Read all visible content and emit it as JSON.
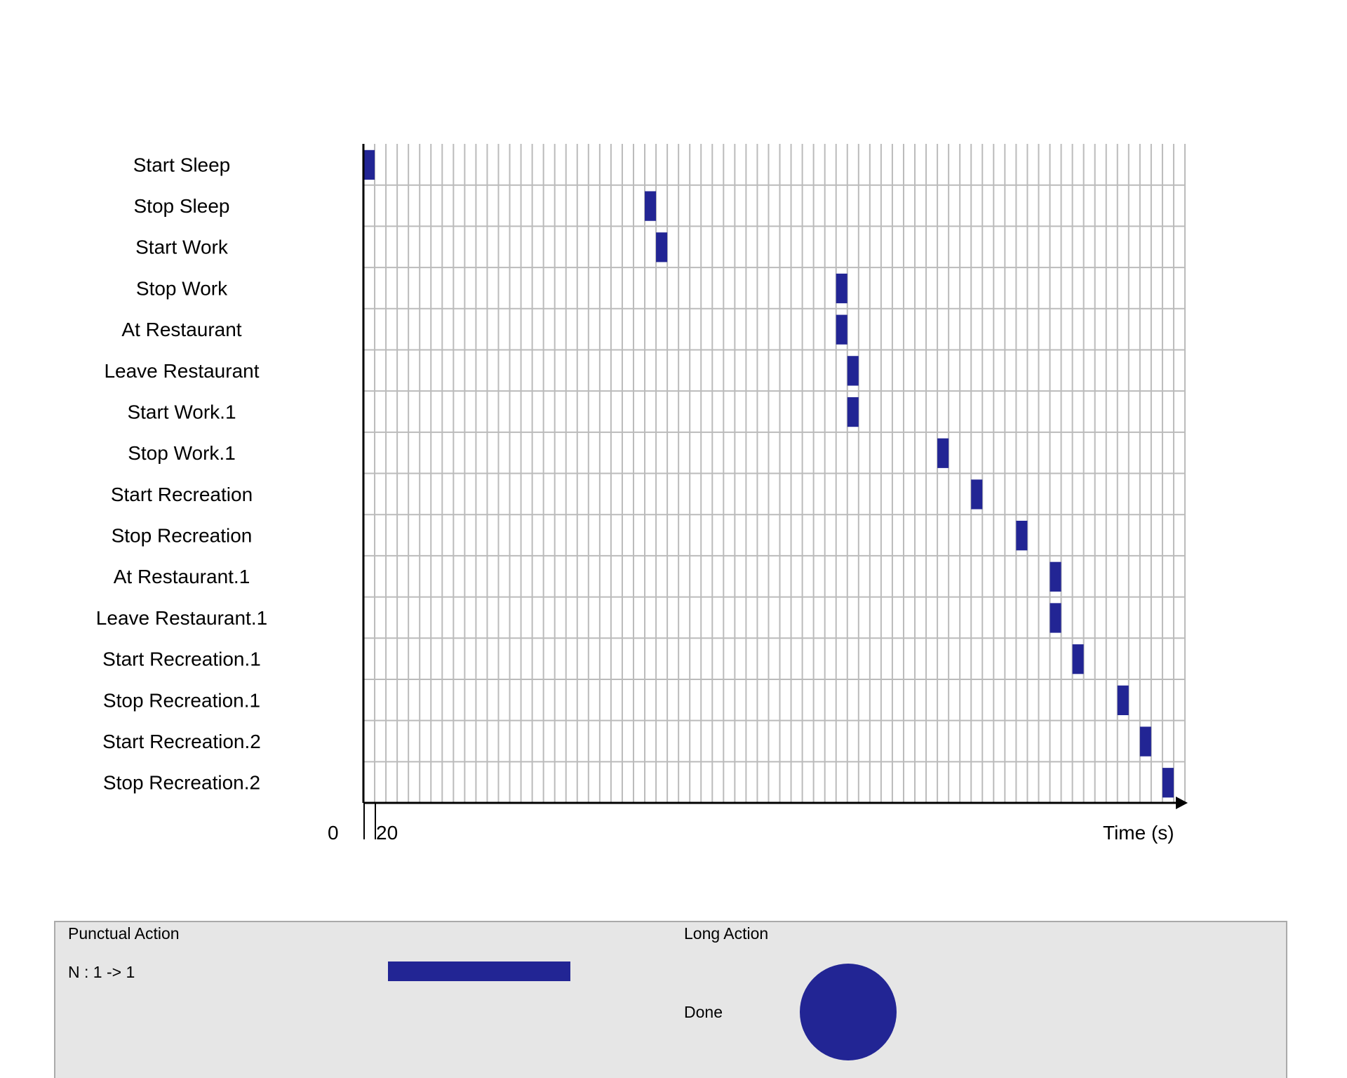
{
  "chart_data": {
    "type": "gantt",
    "rows": [
      "Start Sleep",
      "Stop Sleep",
      "Start Work",
      "Stop Work",
      "At Restaurant",
      "Leave Restaurant",
      "Start Work.1",
      "Stop Work.1",
      "Start Recreation",
      "Stop Recreation",
      "At Restaurant.1",
      "Leave Restaurant.1",
      "Start Recreation.1",
      "Stop Recreation.1",
      "Start Recreation.2",
      "Stop Recreation.2"
    ],
    "events": [
      {
        "row": "Start Sleep",
        "start": 0,
        "end": 20
      },
      {
        "row": "Stop Sleep",
        "start": 500,
        "end": 520
      },
      {
        "row": "Start Work",
        "start": 520,
        "end": 540
      },
      {
        "row": "Stop Work",
        "start": 840,
        "end": 860
      },
      {
        "row": "At Restaurant",
        "start": 840,
        "end": 860
      },
      {
        "row": "Leave Restaurant",
        "start": 860,
        "end": 880
      },
      {
        "row": "Start Work.1",
        "start": 860,
        "end": 880
      },
      {
        "row": "Stop Work.1",
        "start": 1020,
        "end": 1040
      },
      {
        "row": "Start Recreation",
        "start": 1080,
        "end": 1100
      },
      {
        "row": "Stop Recreation",
        "start": 1160,
        "end": 1180
      },
      {
        "row": "At Restaurant.1",
        "start": 1220,
        "end": 1240
      },
      {
        "row": "Leave Restaurant.1",
        "start": 1220,
        "end": 1240
      },
      {
        "row": "Start Recreation.1",
        "start": 1260,
        "end": 1280
      },
      {
        "row": "Stop Recreation.1",
        "start": 1340,
        "end": 1360
      },
      {
        "row": "Start Recreation.2",
        "start": 1380,
        "end": 1400
      },
      {
        "row": "Stop Recreation.2",
        "start": 1420,
        "end": 1440
      }
    ],
    "xlim": [
      0,
      1460
    ],
    "grid_step": 20,
    "x_tick_labels": [
      "0",
      "20"
    ],
    "xlabel": "Time (s)",
    "grid": true,
    "bar_color": "#222594",
    "grid_color": "#bbbbbb"
  },
  "legend": {
    "punctual_title": "Punctual Action",
    "punctual_item": "N : 1 -> 1",
    "long_title": "Long Action",
    "long_item": "Done",
    "marker_color": "#222594",
    "background": "#e6e6e6",
    "border_color": "#aaaaaa"
  }
}
